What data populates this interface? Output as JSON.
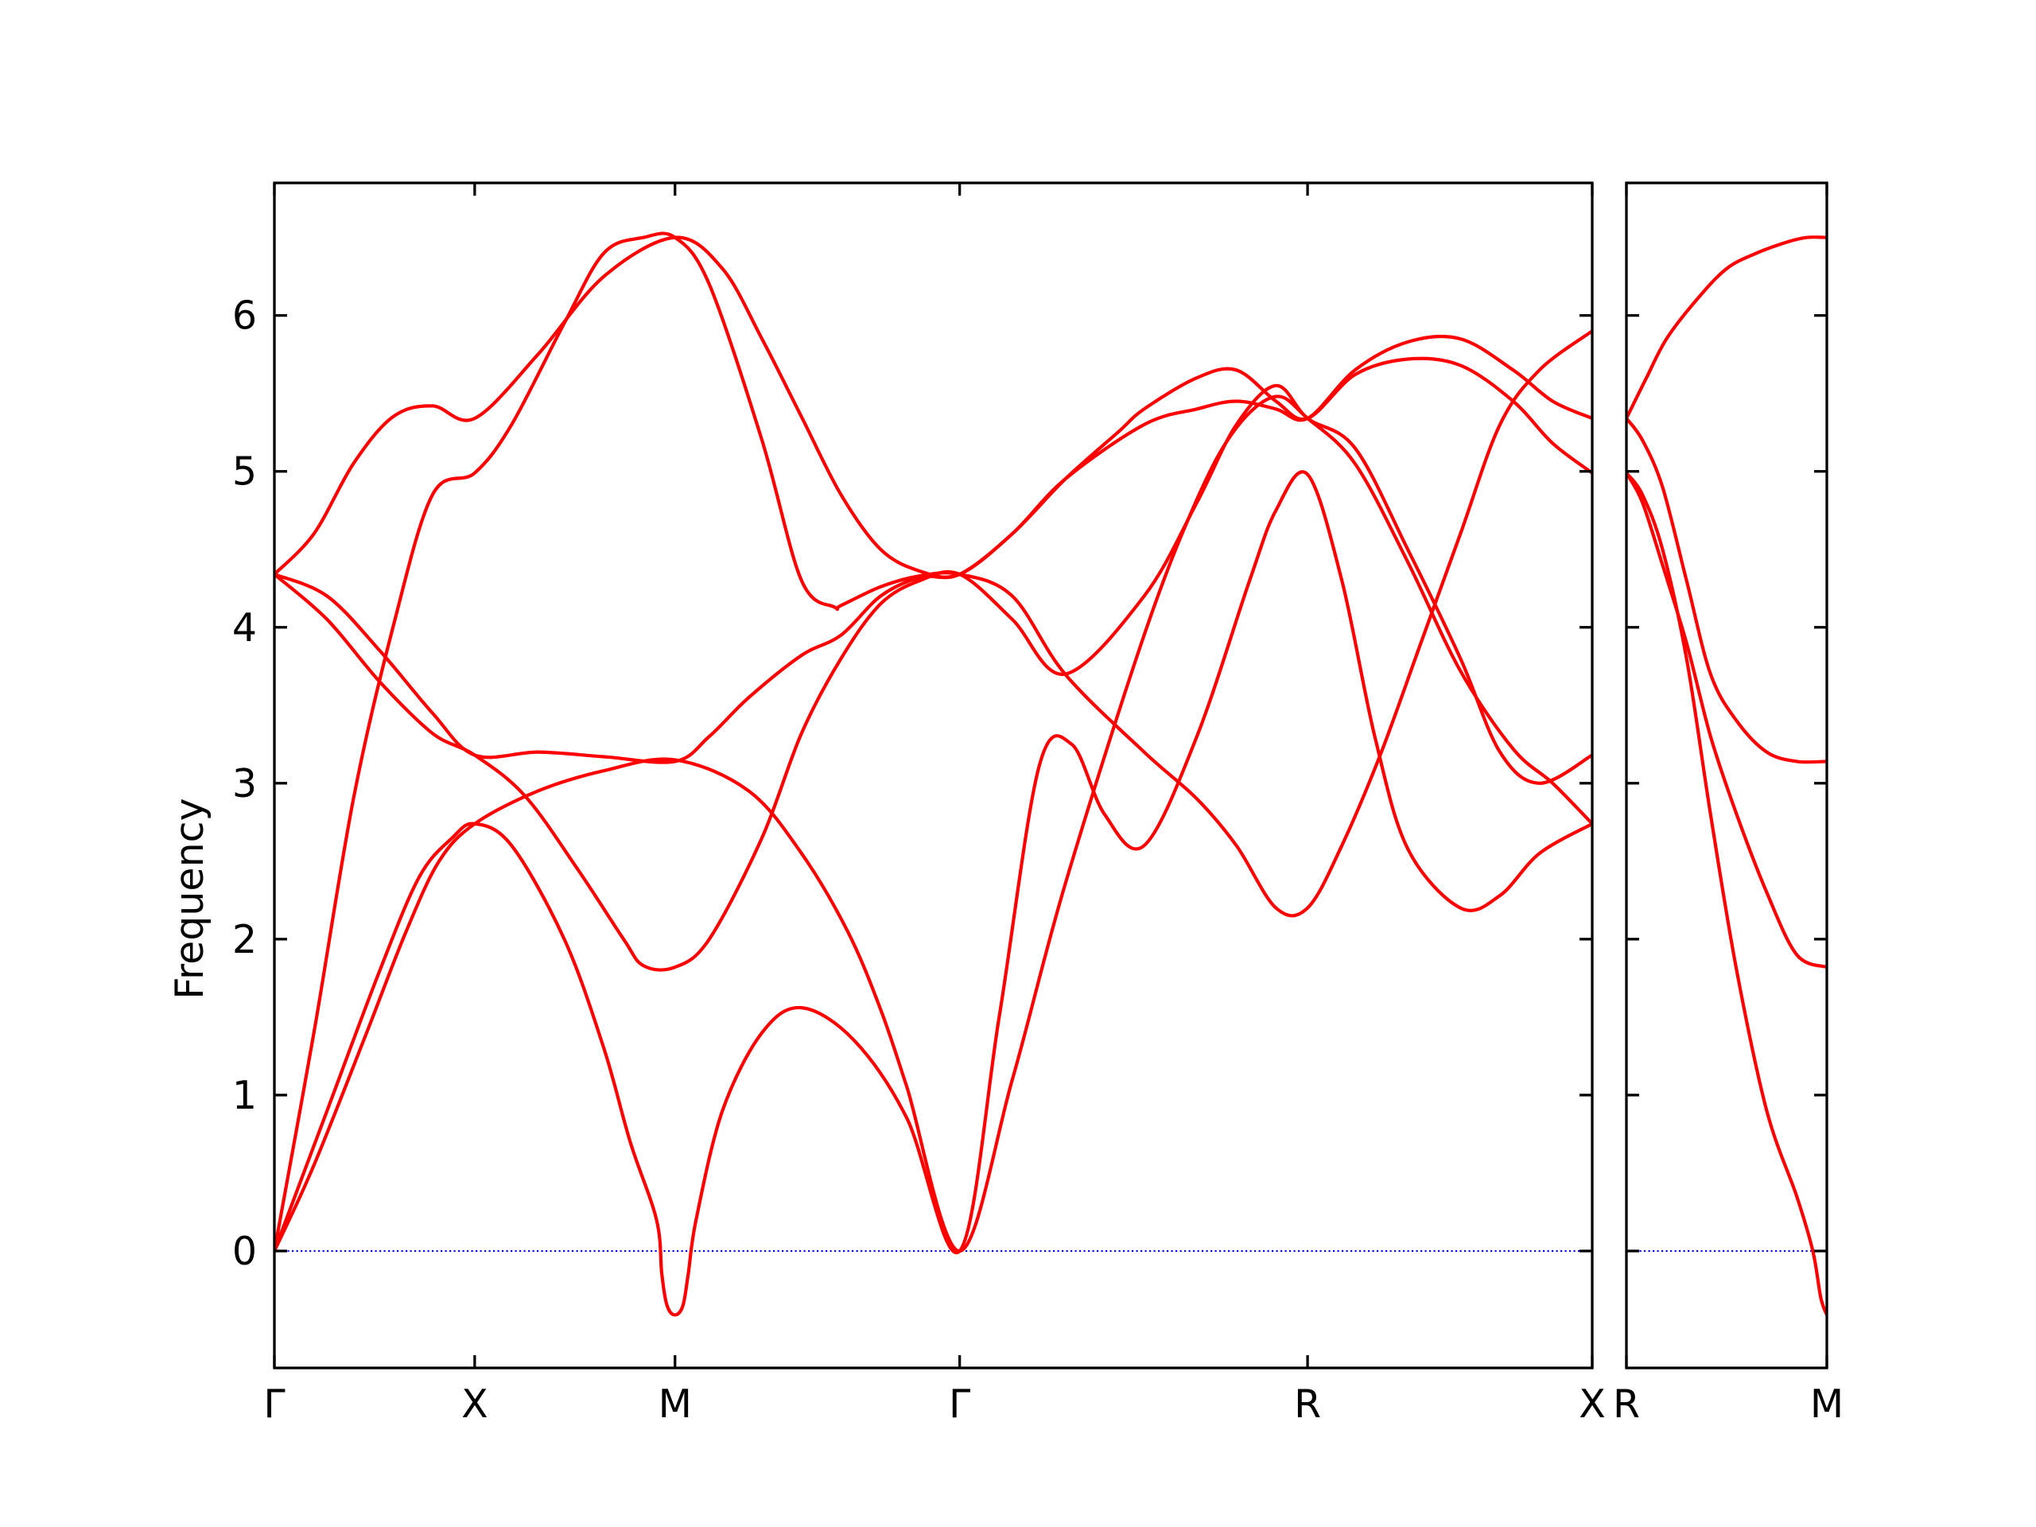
{
  "chart_data": {
    "type": "line",
    "ylabel": "Frequency",
    "ylim": [
      -0.75,
      6.85
    ],
    "yticks": [
      "0",
      "1",
      "2",
      "3",
      "4",
      "5",
      "6"
    ],
    "colors": {
      "bands": "#ff0000",
      "zero_line": "#0000ff",
      "frame": "#000000"
    },
    "grid": false,
    "panels": [
      {
        "xlim": [
          0,
          1
        ],
        "xticks": [
          {
            "x": 0.0,
            "label": "Γ"
          },
          {
            "x": 0.152,
            "label": "X"
          },
          {
            "x": 0.304,
            "label": "M"
          },
          {
            "x": 0.52,
            "label": "Γ"
          },
          {
            "x": 0.784,
            "label": "R"
          },
          {
            "x": 1.0,
            "label": "X"
          }
        ],
        "bands": [
          {
            "x": [
              0,
              0.03,
              0.07,
              0.1,
              0.125,
              0.152,
              0.2,
              0.25,
              0.304,
              0.36,
              0.4,
              0.435,
              0.46,
              0.48,
              0.52,
              0.56,
              0.6,
              0.66,
              0.7,
              0.73,
              0.76,
              0.784,
              0.82,
              0.86,
              0.9,
              0.94,
              0.97,
              1.0
            ],
            "y": [
              0,
              0.55,
              1.4,
              2.05,
              2.5,
              2.74,
              2.95,
              3.08,
              3.15,
              2.95,
              2.55,
              2.05,
              1.55,
              1.05,
              0,
              1.1,
              2.35,
              3.95,
              4.82,
              5.28,
              5.48,
              5.34,
              5.05,
              4.42,
              3.72,
              3.22,
              3.0,
              2.74
            ]
          },
          {
            "x": [
              0,
              0.04,
              0.08,
              0.11,
              0.135,
              0.152,
              0.18,
              0.22,
              0.25,
              0.27,
              0.29,
              0.294,
              0.298,
              0.304,
              0.31,
              0.314,
              0.32,
              0.34,
              0.37,
              0.4,
              0.44,
              0.48,
              0.52,
              0.55,
              0.58,
              0.605,
              0.63,
              0.66,
              0.7,
              0.74,
              0.76,
              0.784,
              0.81,
              0.835,
              0.86,
              0.9,
              0.93,
              0.96,
              1.0
            ],
            "y": [
              0,
              0.9,
              1.8,
              2.4,
              2.65,
              2.74,
              2.6,
              2.0,
              1.3,
              0.7,
              0.2,
              -0.15,
              -0.35,
              -0.41,
              -0.35,
              -0.15,
              0.2,
              0.9,
              1.4,
              1.56,
              1.35,
              0.85,
              0,
              1.5,
              3.1,
              3.25,
              2.8,
              2.6,
              3.3,
              4.3,
              4.75,
              4.98,
              4.3,
              3.3,
              2.58,
              2.2,
              2.28,
              2.55,
              2.74
            ]
          },
          {
            "x": [
              0,
              0.03,
              0.06,
              0.09,
              0.12,
              0.152,
              0.18,
              0.22,
              0.25,
              0.28,
              0.304,
              0.33,
              0.37,
              0.4,
              0.425,
              0.43,
              0.46,
              0.49,
              0.52,
              0.56,
              0.6,
              0.66,
              0.7,
              0.73,
              0.76,
              0.784,
              0.81,
              0.84,
              0.87,
              0.9,
              0.93,
              0.96,
              1.0
            ],
            "y": [
              0,
              1.4,
              2.9,
              4.0,
              4.85,
              4.99,
              5.3,
              5.95,
              6.4,
              6.5,
              6.5,
              6.2,
              5.2,
              4.3,
              4.13,
              4.14,
              4.26,
              4.33,
              4.34,
              4.2,
              3.7,
              3.2,
              2.9,
              2.6,
              2.2,
              2.2,
              2.6,
              3.2,
              3.9,
              4.6,
              5.3,
              5.65,
              5.9
            ]
          },
          {
            "x": [
              0,
              0.04,
              0.08,
              0.12,
              0.152,
              0.19,
              0.23,
              0.265,
              0.28,
              0.304,
              0.33,
              0.37,
              0.4,
              0.43,
              0.46,
              0.49,
              0.52,
              0.56,
              0.6,
              0.66,
              0.7,
              0.73,
              0.76,
              0.784,
              0.82,
              0.86,
              0.9,
              0.93,
              0.96,
              1.0
            ],
            "y": [
              4.34,
              4.05,
              3.65,
              3.32,
              3.18,
              2.92,
              2.45,
              2.0,
              1.83,
              1.82,
              2.0,
              2.65,
              3.32,
              3.8,
              4.15,
              4.3,
              4.34,
              4.05,
              3.7,
              4.2,
              4.8,
              5.3,
              5.55,
              5.34,
              5.15,
              4.5,
              3.8,
              3.2,
              3.0,
              3.18
            ]
          },
          {
            "x": [
              0,
              0.03,
              0.06,
              0.09,
              0.12,
              0.152,
              0.2,
              0.25,
              0.304,
              0.34,
              0.37,
              0.4,
              0.43,
              0.46,
              0.49,
              0.52,
              0.56,
              0.6,
              0.66,
              0.7,
              0.73,
              0.76,
              0.784,
              0.82,
              0.86,
              0.9,
              0.94,
              0.97,
              1.0
            ],
            "y": [
              4.34,
              4.6,
              5.05,
              5.35,
              5.42,
              5.34,
              5.75,
              6.25,
              6.5,
              6.3,
              5.85,
              5.35,
              4.85,
              4.5,
              4.36,
              4.34,
              4.6,
              4.95,
              5.3,
              5.4,
              5.45,
              5.4,
              5.34,
              5.65,
              5.83,
              5.85,
              5.65,
              5.45,
              5.34
            ]
          },
          {
            "x": [
              0,
              0.04,
              0.08,
              0.12,
              0.152,
              0.2,
              0.25,
              0.304,
              0.33,
              0.36,
              0.4,
              0.43,
              0.46,
              0.49,
              0.52,
              0.56,
              0.6,
              0.64,
              0.66,
              0.7,
              0.73,
              0.76,
              0.784,
              0.82,
              0.86,
              0.9,
              0.94,
              0.97,
              1.0
            ],
            "y": [
              4.34,
              4.2,
              3.85,
              3.45,
              3.18,
              3.2,
              3.17,
              3.14,
              3.3,
              3.55,
              3.82,
              3.95,
              4.2,
              4.32,
              4.34,
              4.6,
              4.95,
              5.25,
              5.4,
              5.6,
              5.65,
              5.45,
              5.34,
              5.62,
              5.72,
              5.68,
              5.45,
              5.18,
              4.99
            ]
          }
        ]
      },
      {
        "xlim": [
          0,
          1
        ],
        "xticks": [
          {
            "x": 0.0,
            "label": "R"
          },
          {
            "x": 1.0,
            "label": "M"
          }
        ],
        "bands": [
          {
            "x": [
              0,
              0.1,
              0.2,
              0.35,
              0.5,
              0.65,
              0.8,
              0.9,
              1.0
            ],
            "y": [
              5.34,
              5.6,
              5.85,
              6.1,
              6.3,
              6.4,
              6.47,
              6.5,
              6.5
            ]
          },
          {
            "x": [
              0,
              0.08,
              0.18,
              0.3,
              0.42,
              0.55,
              0.7,
              0.85,
              1.0
            ],
            "y": [
              5.34,
              5.2,
              4.9,
              4.3,
              3.7,
              3.4,
              3.2,
              3.14,
              3.14
            ]
          },
          {
            "x": [
              0,
              0.08,
              0.18,
              0.3,
              0.42,
              0.55,
              0.7,
              0.85,
              1.0
            ],
            "y": [
              4.99,
              4.8,
              4.4,
              3.9,
              3.3,
              2.8,
              2.3,
              1.9,
              1.82
            ]
          },
          {
            "x": [
              0,
              0.08,
              0.18,
              0.3,
              0.42,
              0.55,
              0.7,
              0.85,
              0.93,
              0.97,
              1.0
            ],
            "y": [
              4.99,
              4.85,
              4.5,
              3.8,
              2.8,
              1.8,
              0.9,
              0.35,
              0.0,
              -0.3,
              -0.41
            ]
          }
        ]
      }
    ]
  }
}
